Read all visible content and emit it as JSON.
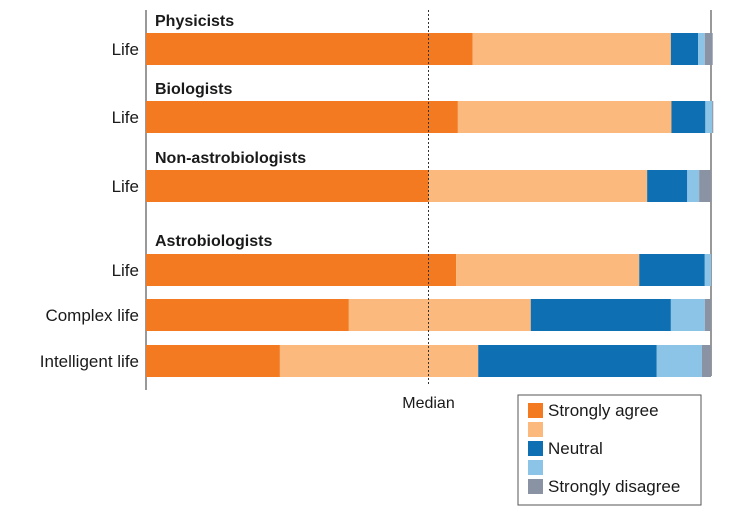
{
  "chart_data": {
    "type": "bar",
    "orientation": "horizontal",
    "stacked": true,
    "normalized_to": 100,
    "xlim": [
      0,
      100
    ],
    "reference_line": {
      "label": "Median",
      "value": 50
    },
    "legend": {
      "placement": "bottom-right",
      "entries": [
        {
          "key": "strongly_agree",
          "label": "Strongly agree",
          "color": "#f47a22"
        },
        {
          "key": "agree",
          "label": "",
          "color": "#fbb97e"
        },
        {
          "key": "neutral",
          "label": "Neutral",
          "color": "#0e70b3"
        },
        {
          "key": "disagree",
          "label": "",
          "color": "#8cc4e8"
        },
        {
          "key": "strongly_disagree",
          "label": "Strongly disagree",
          "color": "#8a93a3"
        }
      ]
    },
    "groups": [
      {
        "title": "Physicists",
        "rows": [
          {
            "label": "Life",
            "values": [
              57.8,
              35.1,
              4.8,
              1.2,
              1.4
            ]
          }
        ]
      },
      {
        "title": "Biologists",
        "rows": [
          {
            "label": "Life",
            "values": [
              55.2,
              37.8,
              6.0,
              1.2,
              0.2
            ]
          }
        ]
      },
      {
        "title": "Non-astrobiologists",
        "rows": [
          {
            "label": "Life",
            "values": [
              50.0,
              38.7,
              7.1,
              2.1,
              2.1
            ]
          }
        ]
      },
      {
        "title": "Astrobiologists",
        "rows": [
          {
            "label": "Life",
            "values": [
              54.9,
              32.4,
              11.6,
              1.1,
              0.0
            ]
          },
          {
            "label": "Complex life",
            "values": [
              35.9,
              32.2,
              24.8,
              6.0,
              1.1
            ]
          },
          {
            "label": "Intelligent life",
            "values": [
              23.7,
              35.1,
              31.6,
              8.0,
              1.6
            ]
          }
        ]
      }
    ]
  }
}
